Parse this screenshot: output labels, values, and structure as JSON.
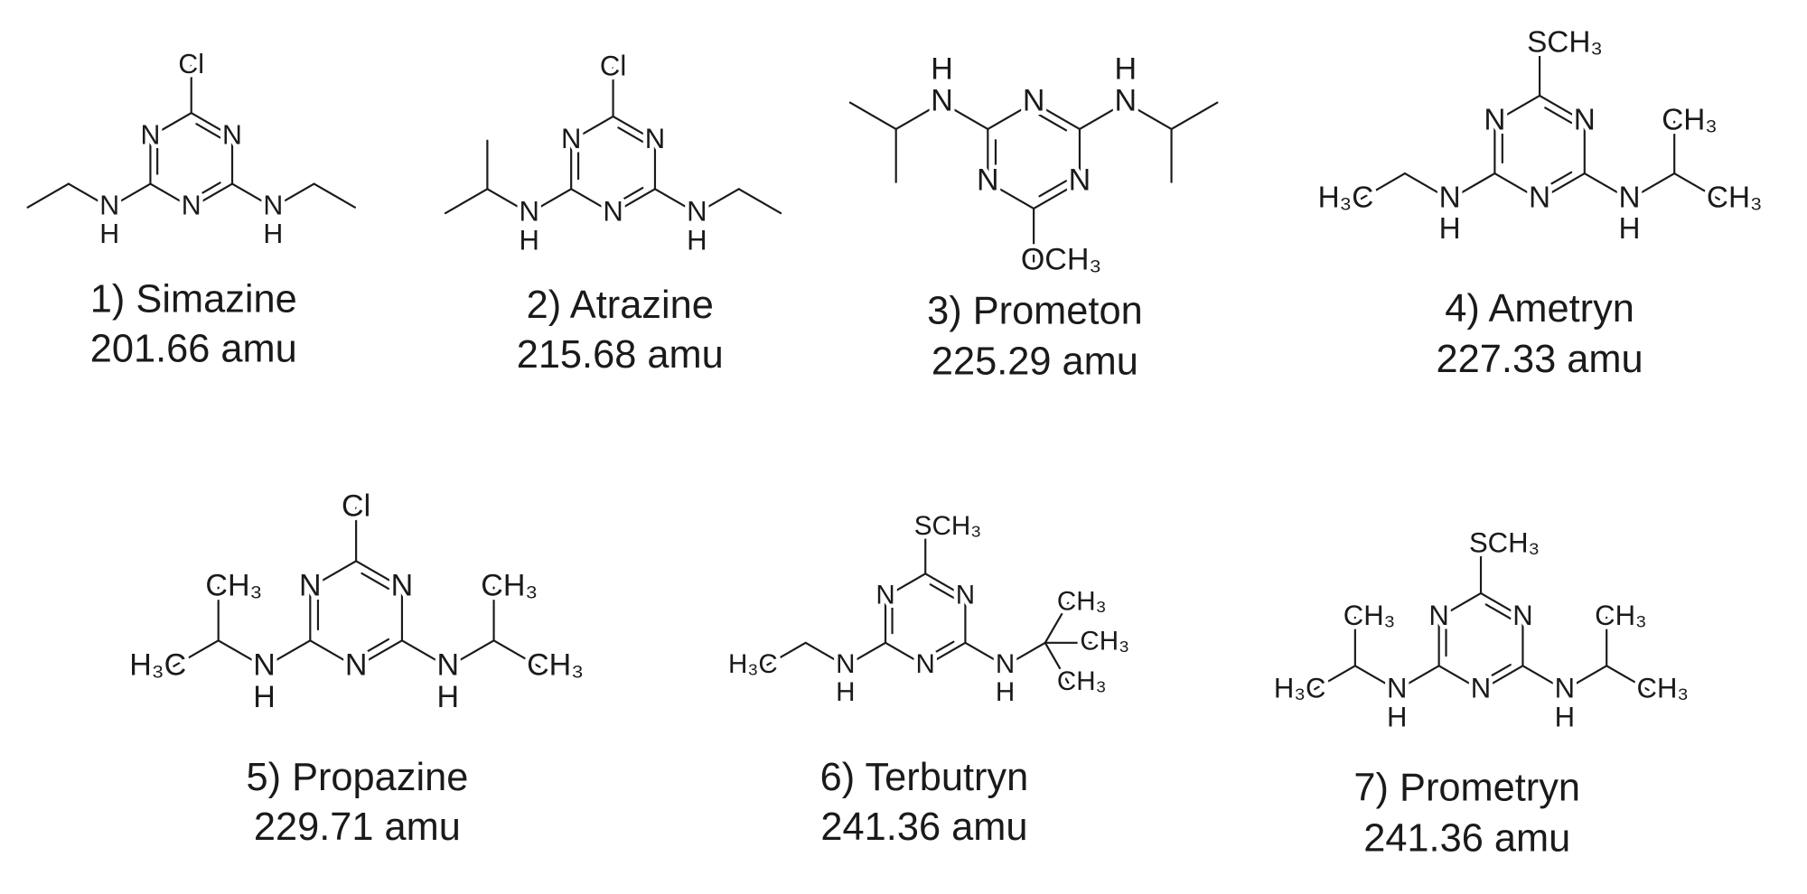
{
  "compounds": [
    {
      "name": "1) Simazine",
      "mass": "201.66 amu",
      "substituent": "Cl",
      "ring": [
        "N",
        "N",
        "N"
      ],
      "left_amine": [
        "N",
        "H"
      ],
      "right_amine": [
        "N",
        "H"
      ]
    },
    {
      "name": "2) Atrazine",
      "mass": "215.68 amu",
      "substituent": "Cl",
      "ring": [
        "N",
        "N",
        "N"
      ],
      "left_amine": [
        "N",
        "H"
      ],
      "right_amine": [
        "N",
        "H"
      ]
    },
    {
      "name": "3) Prometon",
      "mass": "225.29 amu",
      "substituent": "OCH₃",
      "ring": [
        "N",
        "N",
        "N"
      ],
      "left_amine": [
        "N",
        "H"
      ],
      "right_amine": [
        "N",
        "H"
      ]
    },
    {
      "name": "4) Ametryn",
      "mass": "227.33 amu",
      "substituent": "SCH₃",
      "ring": [
        "N",
        "N",
        "N"
      ],
      "left_amine": [
        "N",
        "H"
      ],
      "right_amine": [
        "N",
        "H"
      ],
      "left_group": [
        "H₃C"
      ],
      "right_group": [
        "CH₃",
        "CH₃"
      ]
    },
    {
      "name": "5) Propazine",
      "mass": "229.71 amu",
      "substituent": "Cl",
      "ring": [
        "N",
        "N",
        "N"
      ],
      "left_amine": [
        "N",
        "H"
      ],
      "right_amine": [
        "N",
        "H"
      ],
      "left_group": [
        "CH₃",
        "H₃C"
      ],
      "right_group": [
        "CH₃",
        "CH₃"
      ]
    },
    {
      "name": "6) Terbutryn",
      "mass": "241.36 amu",
      "substituent": "SCH₃",
      "ring": [
        "N",
        "N",
        "N"
      ],
      "left_amine": [
        "N",
        "H"
      ],
      "right_amine": [
        "N",
        "H"
      ],
      "left_group": [
        "H₃C"
      ],
      "right_group": [
        "CH₃",
        "CH₃",
        "CH₃"
      ]
    },
    {
      "name": "7) Prometryn",
      "mass": "241.36 amu",
      "substituent": "SCH₃",
      "ring": [
        "N",
        "N",
        "N"
      ],
      "left_amine": [
        "N",
        "H"
      ],
      "right_amine": [
        "N",
        "H"
      ],
      "left_group": [
        "CH₃",
        "H₃C"
      ],
      "right_group": [
        "CH₃",
        "CH₃"
      ]
    }
  ]
}
